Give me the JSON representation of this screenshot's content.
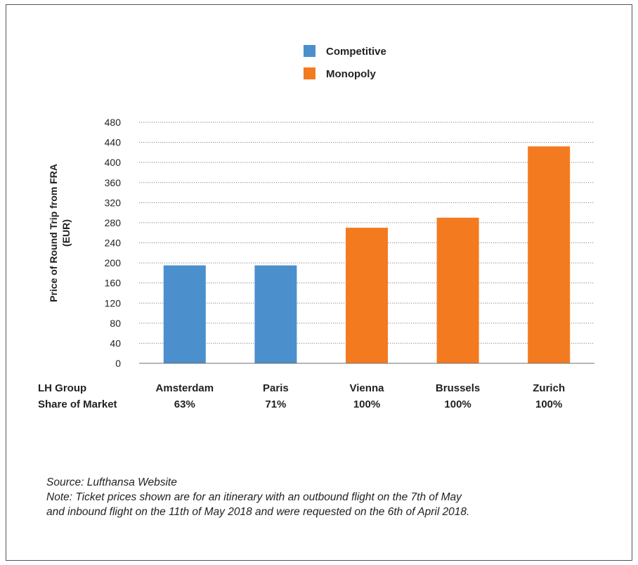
{
  "chart_data": {
    "type": "bar",
    "ylabel": [
      "Price of Round Trip from FRA",
      "(EUR)"
    ],
    "ylim": [
      0,
      480
    ],
    "yticks": [
      0,
      40,
      80,
      120,
      160,
      200,
      240,
      280,
      320,
      360,
      400,
      440,
      480
    ],
    "grid": true,
    "legend_position": "top-center",
    "legend": [
      {
        "label": "Competitive",
        "color": "#4b8fcd"
      },
      {
        "label": "Monopoly",
        "color": "#f47a20"
      }
    ],
    "row_header": [
      "LH Group",
      "Share of Market"
    ],
    "categories": [
      "Amsterdam",
      "Paris",
      "Vienna",
      "Brussels",
      "Zurich"
    ],
    "shares": [
      "63%",
      "71%",
      "100%",
      "100%",
      "100%"
    ],
    "values": [
      195,
      195,
      270,
      290,
      432
    ],
    "groups": [
      "Competitive",
      "Competitive",
      "Monopoly",
      "Monopoly",
      "Monopoly"
    ]
  },
  "notes": {
    "source": "Source: Lufthansa Website",
    "note_line1": "Note: Ticket prices shown are for an itinerary with an outbound flight on the 7th of May",
    "note_line2": "and inbound flight on the 11th of May 2018 and were requested on the 6th of April 2018."
  }
}
